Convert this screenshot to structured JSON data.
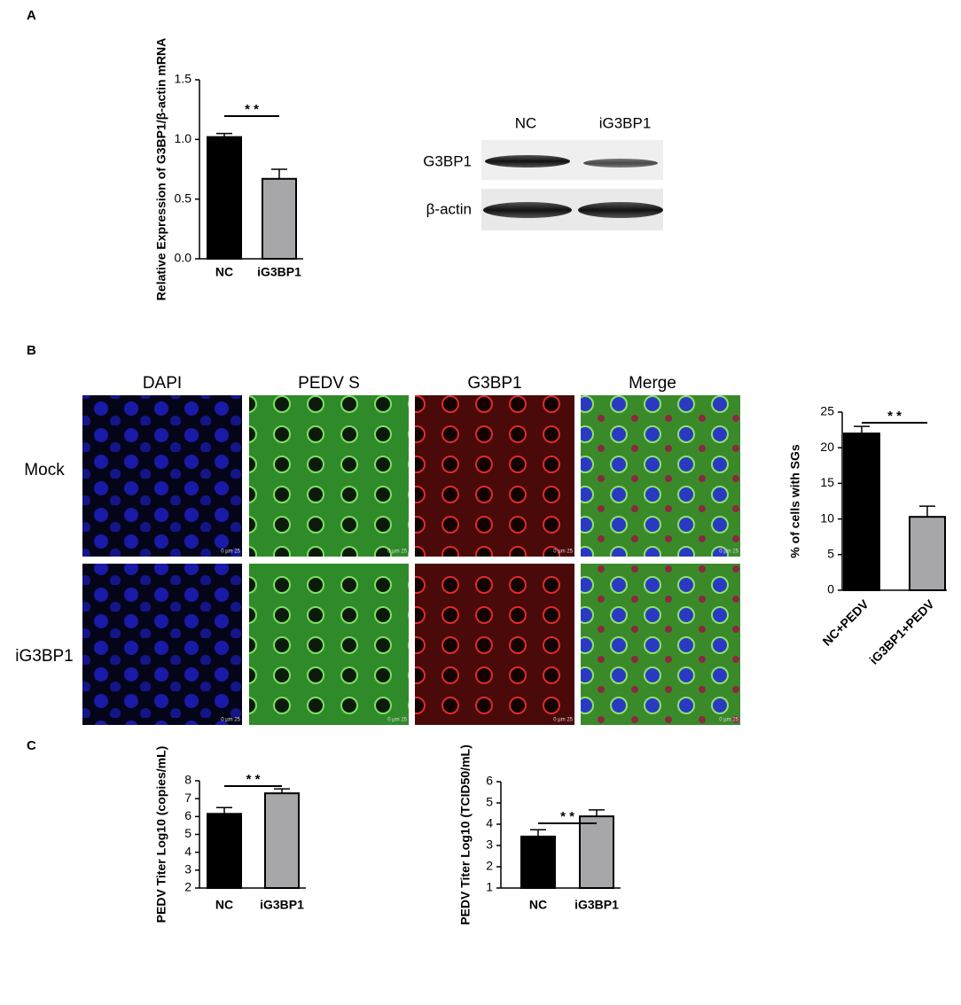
{
  "panels": {
    "a": "A",
    "b": "B",
    "c": "C"
  },
  "blot": {
    "lanes": [
      "NC",
      "iG3BP1"
    ],
    "rows": [
      "G3BP1",
      "β-actin"
    ]
  },
  "microscopy": {
    "columns": [
      "DAPI",
      "PEDV S",
      "G3BP1",
      "Merge"
    ],
    "rows": [
      "Mock",
      "iG3BP1"
    ],
    "scale_bar": "0   µm   25"
  },
  "chart_data": [
    {
      "type": "bar",
      "y_label": "Relative Expression of G3BP1/β-actin mRNA",
      "categories": [
        "NC",
        "iG3BP1"
      ],
      "values": [
        1.02,
        0.67
      ],
      "errors": [
        0.03,
        0.08
      ],
      "colors": [
        "#000000",
        "#a7a7a9"
      ],
      "ylim": [
        0,
        1.5
      ],
      "yticks": [
        {
          "value": 0,
          "label": "0.0"
        },
        {
          "value": 0.5,
          "label": "0.5"
        },
        {
          "value": 1,
          "label": "1.0"
        },
        {
          "value": 1.5,
          "label": "1.5"
        }
      ],
      "annotation": "* *"
    },
    {
      "type": "bar",
      "y_label": "% of cells with SGs",
      "categories": [
        "NC+PEDV",
        "iG3BP1+PEDV"
      ],
      "values": [
        22,
        10.3
      ],
      "errors": [
        1,
        1.5
      ],
      "colors": [
        "#000000",
        "#a7a7a9"
      ],
      "ylim": [
        0,
        25
      ],
      "yticks": [
        0,
        5,
        10,
        15,
        20,
        25
      ],
      "annotation": "* *"
    },
    {
      "type": "bar",
      "y_label": "PEDV Titer Log10 (copies/mL)",
      "categories": [
        "NC",
        "iG3BP1"
      ],
      "values": [
        6.15,
        7.3
      ],
      "errors": [
        0.35,
        0.25
      ],
      "colors": [
        "#000000",
        "#a7a7a9"
      ],
      "ylim": [
        2,
        8
      ],
      "yticks": [
        2,
        3,
        4,
        5,
        6,
        7,
        8
      ],
      "annotation": "* *"
    },
    {
      "type": "bar",
      "y_label": "PEDV Titer Log10 (TCID50/mL)",
      "categories": [
        "NC",
        "iG3BP1"
      ],
      "values": [
        3.42,
        4.37
      ],
      "errors": [
        0.32,
        0.3
      ],
      "colors": [
        "#000000",
        "#a7a7a9"
      ],
      "ylim": [
        1,
        6
      ],
      "yticks": [
        1,
        2,
        3,
        4,
        5,
        6
      ],
      "annotation": "* *"
    }
  ]
}
